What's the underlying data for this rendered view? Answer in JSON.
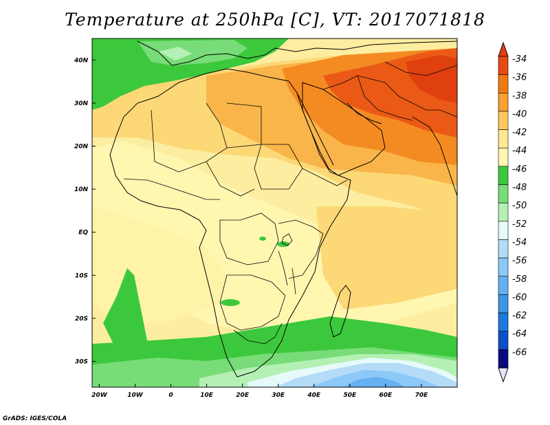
{
  "title": "Temperature at 250hPa [C], VT: 2017071818",
  "credit": "GrADS: IGES/COLA",
  "map": {
    "lat_labels": [
      "40N",
      "30N",
      "20N",
      "10N",
      "EQ",
      "10S",
      "20S",
      "30S"
    ],
    "lat_values": [
      40,
      30,
      20,
      10,
      0,
      -10,
      -20,
      -30
    ],
    "lon_labels": [
      "20W",
      "10W",
      "0",
      "10E",
      "20E",
      "30E",
      "40E",
      "50E",
      "60E",
      "70E"
    ],
    "lon_values": [
      -20,
      -10,
      0,
      10,
      20,
      30,
      40,
      50,
      60,
      70
    ],
    "lat_range": [
      -36,
      45
    ],
    "lon_range": [
      -22,
      80
    ]
  },
  "colorbar": {
    "labels": [
      "-34",
      "-36",
      "-38",
      "-40",
      "-42",
      "-44",
      "-46",
      "-48",
      "-50",
      "-52",
      "-54",
      "-56",
      "-58",
      "-60",
      "-62",
      "-64",
      "-66"
    ],
    "colors": [
      "#e84a10",
      "#f07a10",
      "#f8a030",
      "#fcc860",
      "#fee890",
      "#fff6b0",
      "#3cc83c",
      "#78dc78",
      "#b4f0b4",
      "#e6fafa",
      "#b4dcf8",
      "#8cc8f8",
      "#64b0f0",
      "#3c96e6",
      "#1e78dc",
      "#0a50c8",
      "#0a0a80"
    ],
    "top_color": "#e83c14",
    "bottom_color": "#e6e6ff"
  },
  "field_colors": {
    "bg": "#fdeda0",
    "light_yellow": "#fff6b0",
    "yellow": "#fcd877",
    "orange_light": "#f9b54a",
    "orange": "#f48b22",
    "red": "#ea5a16",
    "green": "#3cc83c",
    "green_light": "#78dc78",
    "green_pale": "#b4f0b4",
    "cyan": "#e6fafa",
    "blue_light": "#b4dcf8",
    "blue": "#8cc8f8",
    "blue_dark": "#64b0f0"
  }
}
